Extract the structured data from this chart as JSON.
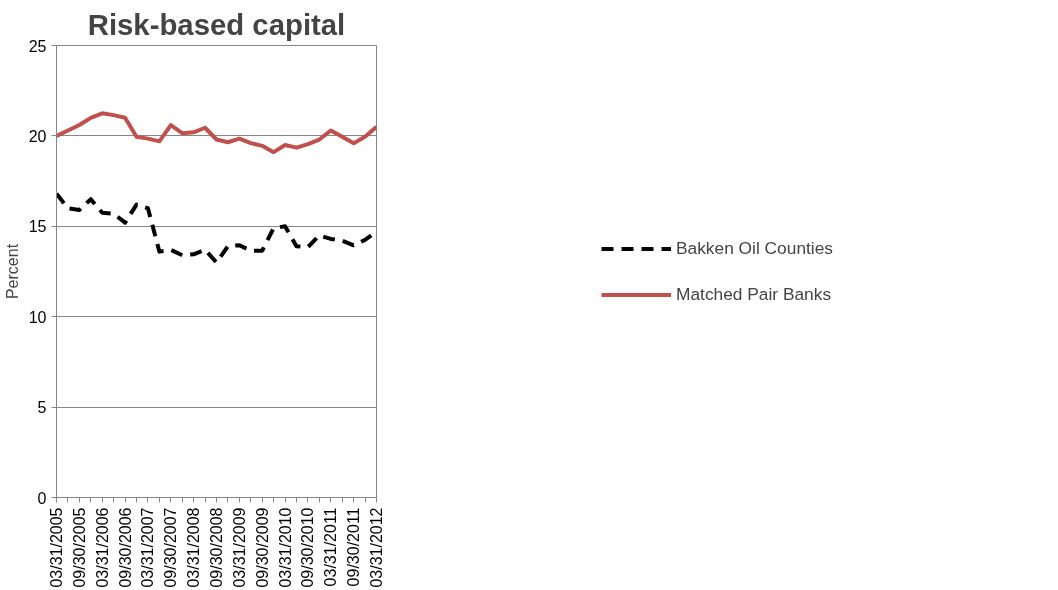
{
  "chart_data": {
    "type": "line",
    "title": "Risk-based capital",
    "ylabel": "Percent",
    "categories": [
      "03/31/2005",
      null,
      "09/30/2005",
      null,
      "03/31/2006",
      null,
      "09/30/2006",
      null,
      "03/31/2007",
      null,
      "09/30/2007",
      null,
      "03/31/2008",
      null,
      "09/30/2008",
      null,
      "03/31/2009",
      null,
      "09/30/2009",
      null,
      "03/31/2010",
      null,
      "09/30/2010",
      null,
      "03/31/2011",
      null,
      "09/30/2011",
      null,
      "03/31/2012"
    ],
    "series": [
      {
        "name": "Bakken Oil Counties",
        "color": "#000000",
        "line_style": "dashed",
        "values": [
          16.8,
          16.0,
          15.9,
          16.5,
          15.75,
          15.7,
          15.2,
          16.2,
          16.0,
          13.6,
          13.7,
          13.4,
          13.45,
          13.7,
          13.0,
          13.9,
          13.95,
          13.65,
          13.65,
          14.9,
          15.0,
          13.9,
          13.85,
          14.5,
          14.3,
          14.2,
          13.95,
          14.25,
          14.7
        ]
      },
      {
        "name": "Matched Pair Banks",
        "color": "#c0504d",
        "line_style": "solid",
        "values": [
          20.0,
          20.3,
          20.6,
          21.0,
          21.25,
          21.15,
          21.0,
          19.95,
          19.85,
          19.7,
          20.6,
          20.15,
          20.2,
          20.45,
          19.8,
          19.65,
          19.85,
          19.6,
          19.45,
          19.1,
          19.5,
          19.35,
          19.55,
          19.8,
          20.3,
          19.95,
          19.6,
          19.95,
          20.5
        ]
      }
    ],
    "ylim": [
      0,
      25
    ],
    "yticks": [
      0,
      5,
      10,
      15,
      20,
      25
    ],
    "grid": "y",
    "legend": "right",
    "marker": "none"
  }
}
